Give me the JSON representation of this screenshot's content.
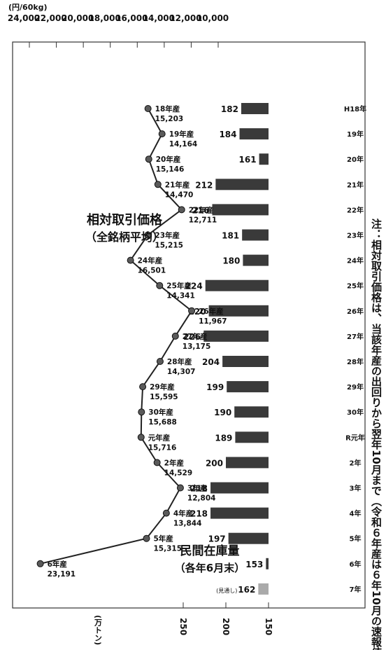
{
  "chart_data": {
    "type": "bar+line",
    "orientation": "rotated-90-clockwise",
    "categories": [
      "H18年",
      "19年",
      "20年",
      "21年",
      "22年",
      "23年",
      "24年",
      "25年",
      "26年",
      "27年",
      "28年",
      "29年",
      "30年",
      "R元年",
      "2年",
      "3年",
      "4年",
      "5年",
      "6年",
      "7年"
    ],
    "price_axis": {
      "unit": "(円/60kg)",
      "ticks": [
        "24,000",
        "22,000",
        "20,000",
        "18,000",
        "16,000",
        "14,000",
        "12,000",
        "10,000"
      ],
      "values": [
        24000,
        22000,
        20000,
        18000,
        16000,
        14000,
        12000,
        10000
      ],
      "range": [
        10000,
        24000
      ]
    },
    "stock_axis": {
      "unit": "(万トン)",
      "ticks": [
        "250",
        "200",
        "150"
      ],
      "values": [
        250,
        200,
        150
      ],
      "range": [
        100,
        270
      ]
    },
    "series": [
      {
        "name": "相対取引価格（全銘柄平均）",
        "kind": "line",
        "points": [
          {
            "cat": "H18年",
            "label": "18年産",
            "value": 15203,
            "value_text": "15,203"
          },
          {
            "cat": "19年",
            "label": "19年産",
            "value": 14164,
            "value_text": "14,164"
          },
          {
            "cat": "20年",
            "label": "20年産",
            "value": 15146,
            "value_text": "15,146"
          },
          {
            "cat": "21年",
            "label": "21年産",
            "value": 14470,
            "value_text": "14,470"
          },
          {
            "cat": "22年",
            "label": "22年産",
            "value": 12711,
            "value_text": "12,711"
          },
          {
            "cat": "23年",
            "label": "23年産",
            "value": 15215,
            "value_text": "15,215"
          },
          {
            "cat": "24年",
            "label": "24年産",
            "value": 16501,
            "value_text": "16,501"
          },
          {
            "cat": "25年",
            "label": "25年産",
            "value": 14341,
            "value_text": "14,341"
          },
          {
            "cat": "26年",
            "label": "26年産",
            "value": 11967,
            "value_text": "11,967"
          },
          {
            "cat": "27年",
            "label": "27年産",
            "value": 13175,
            "value_text": "13,175"
          },
          {
            "cat": "28年",
            "label": "28年産",
            "value": 14307,
            "value_text": "14,307"
          },
          {
            "cat": "29年",
            "label": "29年産",
            "value": 15595,
            "value_text": "15,595"
          },
          {
            "cat": "30年",
            "label": "30年産",
            "value": 15688,
            "value_text": "15,688"
          },
          {
            "cat": "R元年",
            "label": "元年産",
            "value": 15716,
            "value_text": "15,716"
          },
          {
            "cat": "2年",
            "label": "2年産",
            "value": 14529,
            "value_text": "14,529"
          },
          {
            "cat": "3年",
            "label": "3年産",
            "value": 12804,
            "value_text": "12,804"
          },
          {
            "cat": "4年",
            "label": "4年産",
            "value": 13844,
            "value_text": "13,844"
          },
          {
            "cat": "5年",
            "label": "5年産",
            "value": 15315,
            "value_text": "15,315"
          },
          {
            "cat": "6年",
            "label": "6年産",
            "value": 23191,
            "value_text": "23,191"
          }
        ]
      },
      {
        "name": "民間在庫量（各年6月末）",
        "kind": "bar",
        "values": [
          182,
          184,
          161,
          212,
          216,
          181,
          180,
          224,
          220,
          226,
          204,
          199,
          190,
          189,
          200,
          218,
          218,
          197,
          153,
          162
        ],
        "projection_index": 19,
        "projection_label": "(見通し)"
      }
    ],
    "line_title": {
      "main": "相対取引価格",
      "sub": "（全銘柄平均）"
    },
    "bar_title": {
      "main": "民間在庫量",
      "sub": "（各年6月末）"
    },
    "note": "注：相対取引価格は、当該年産の出回りから翌年10月まで（令和６年産は６年10月の速報値）",
    "colors": {
      "bar": "#3a3a3a",
      "projection": "#aaaaaa",
      "line": "#222222",
      "marker": "#5a5a5a",
      "frame": "#333333"
    }
  }
}
